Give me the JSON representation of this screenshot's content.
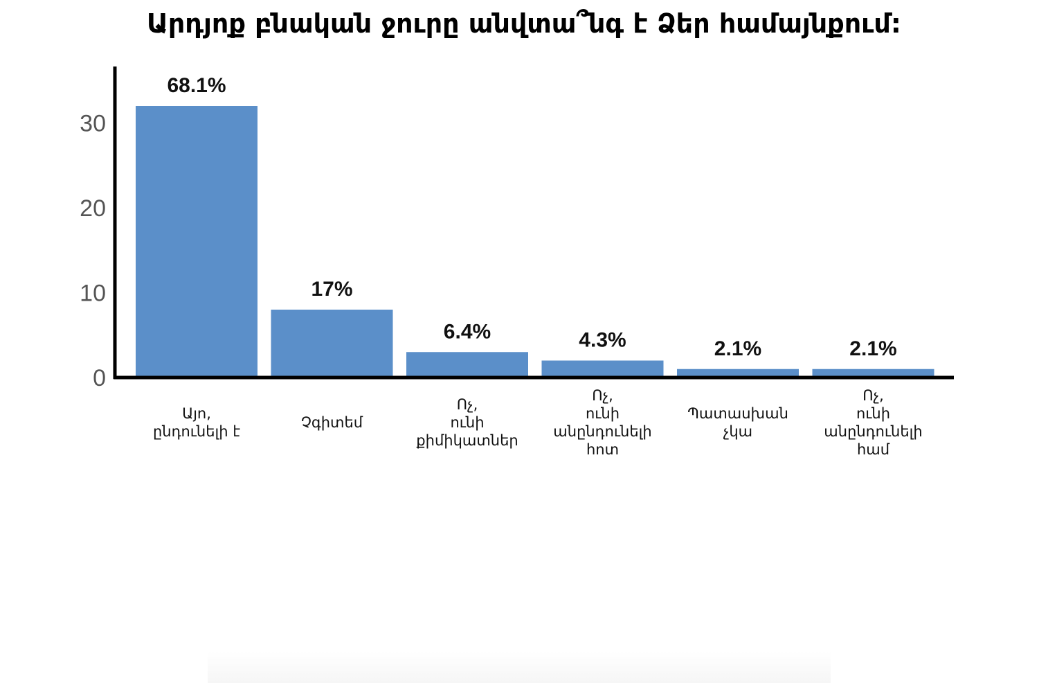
{
  "chart_data": {
    "type": "bar",
    "title": "Արդյոք բնական ջուրը անվտա՞նգ է Ձեր համայնքում:",
    "categories": [
      [
        "Այո,",
        "ընդունելի է"
      ],
      [
        "Չգիտեմ"
      ],
      [
        "Ոչ,",
        "ունի",
        "քիմիկատներ"
      ],
      [
        "Ոչ,",
        "ունի",
        "անընդունելի",
        "հոտ"
      ],
      [
        "Պատասխան",
        "չկա"
      ],
      [
        "Ոչ,",
        "ունի",
        "անընդունելի",
        "համ"
      ]
    ],
    "values": [
      32,
      8,
      3,
      2,
      1,
      1
    ],
    "data_labels": [
      "68.1%",
      "17%",
      "6.4%",
      "4.3%",
      "2.1%",
      "2.1%"
    ],
    "ylim": [
      0,
      37
    ],
    "yticks": [
      0,
      10,
      20,
      30
    ],
    "ytick_labels": [
      "0",
      "10",
      "20",
      "30"
    ],
    "bar_color": "#5b8fc9",
    "axis_color": "#000000",
    "grid": false,
    "xlabel": "",
    "ylabel": ""
  }
}
